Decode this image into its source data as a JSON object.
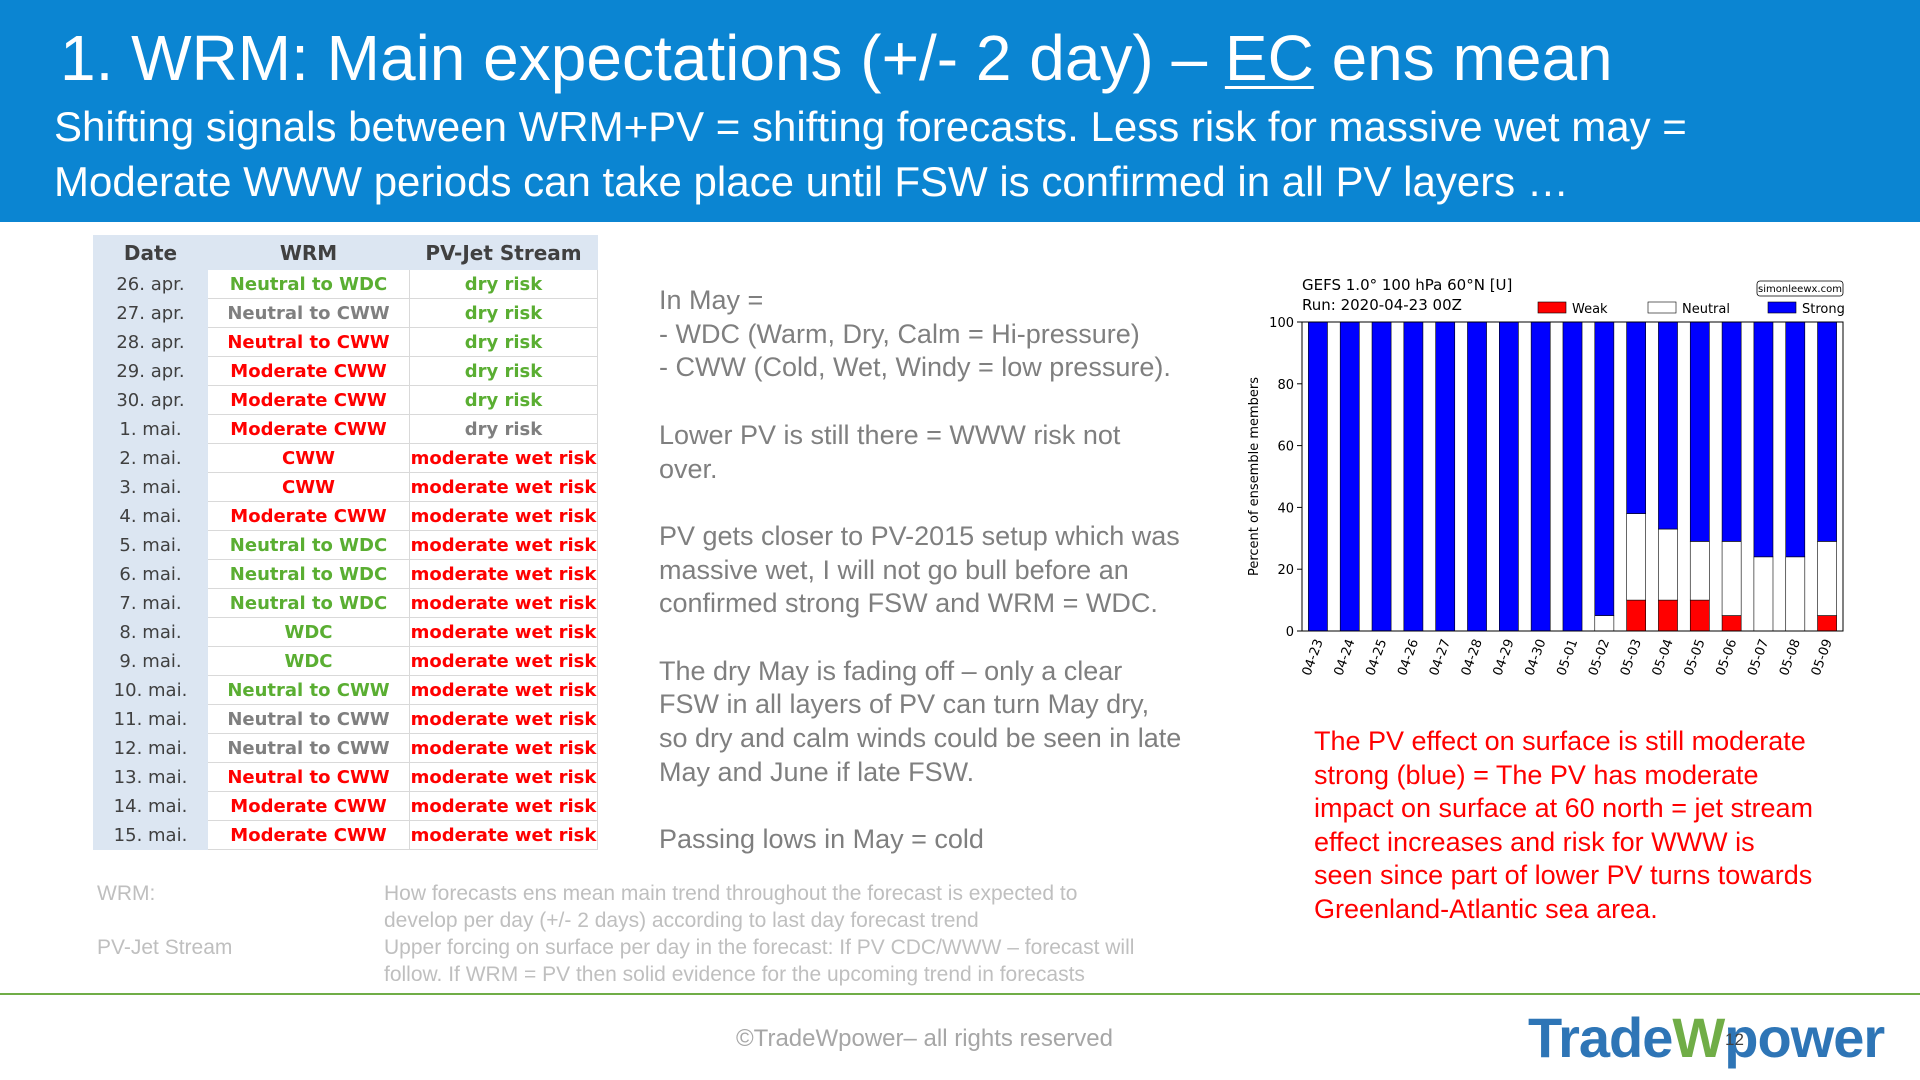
{
  "header": {
    "title": [
      "1. WRM: Main expectations (+/- 2 day) – ",
      "EC",
      " ens mean"
    ],
    "subtitle": [
      "Shifting signals between WRM+PV = shifting forecasts. Less risk for massive wet may =",
      "Moderate WWW periods can take place until FSW is confirmed in all PV layers …"
    ]
  },
  "table": {
    "columns": [
      "Date",
      "WRM",
      "PV-Jet Stream"
    ],
    "rows": [
      {
        "date": "26. apr.",
        "wrm": "Neutral to WDC",
        "wrm_color": "#5aae32",
        "pv": "dry risk",
        "pv_color": "#5aae32"
      },
      {
        "date": "27. apr.",
        "wrm": "Neutral to CWW",
        "wrm_color": "#7f7f7f",
        "pv": "dry risk",
        "pv_color": "#5aae32"
      },
      {
        "date": "28. apr.",
        "wrm": "Neutral to CWW",
        "wrm_color": "#ff0000",
        "pv": "dry risk",
        "pv_color": "#5aae32"
      },
      {
        "date": "29. apr.",
        "wrm": "Moderate CWW",
        "wrm_color": "#ff0000",
        "pv": "dry risk",
        "pv_color": "#5aae32"
      },
      {
        "date": "30. apr.",
        "wrm": "Moderate CWW",
        "wrm_color": "#ff0000",
        "pv": "dry risk",
        "pv_color": "#5aae32"
      },
      {
        "date": "1. mai.",
        "wrm": "Moderate CWW",
        "wrm_color": "#ff0000",
        "pv": "dry risk",
        "pv_color": "#7f7f7f"
      },
      {
        "date": "2. mai.",
        "wrm": "CWW",
        "wrm_color": "#ff0000",
        "pv": "moderate wet risk",
        "pv_color": "#ff0000"
      },
      {
        "date": "3. mai.",
        "wrm": "CWW",
        "wrm_color": "#ff0000",
        "pv": "moderate wet risk",
        "pv_color": "#ff0000"
      },
      {
        "date": "4. mai.",
        "wrm": "Moderate CWW",
        "wrm_color": "#ff0000",
        "pv": "moderate wet risk",
        "pv_color": "#ff0000"
      },
      {
        "date": "5. mai.",
        "wrm": "Neutral to WDC",
        "wrm_color": "#5aae32",
        "pv": "moderate wet risk",
        "pv_color": "#ff0000"
      },
      {
        "date": "6. mai.",
        "wrm": "Neutral to WDC",
        "wrm_color": "#5aae32",
        "pv": "moderate wet risk",
        "pv_color": "#ff0000"
      },
      {
        "date": "7. mai.",
        "wrm": "Neutral to WDC",
        "wrm_color": "#5aae32",
        "pv": "moderate wet risk",
        "pv_color": "#ff0000"
      },
      {
        "date": "8. mai.",
        "wrm": "WDC",
        "wrm_color": "#5aae32",
        "pv": "moderate wet risk",
        "pv_color": "#ff0000"
      },
      {
        "date": "9. mai.",
        "wrm": "WDC",
        "wrm_color": "#5aae32",
        "pv": "moderate wet risk",
        "pv_color": "#ff0000"
      },
      {
        "date": "10. mai.",
        "wrm": "Neutral to CWW",
        "wrm_color": "#5aae32",
        "pv": "moderate wet risk",
        "pv_color": "#ff0000"
      },
      {
        "date": "11. mai.",
        "wrm": "Neutral to CWW",
        "wrm_color": "#7f7f7f",
        "pv": "moderate wet risk",
        "pv_color": "#ff0000"
      },
      {
        "date": "12. mai.",
        "wrm": "Neutral to CWW",
        "wrm_color": "#7f7f7f",
        "pv": "moderate wet risk",
        "pv_color": "#ff0000"
      },
      {
        "date": "13. mai.",
        "wrm": "Neutral to CWW",
        "wrm_color": "#ff0000",
        "pv": "moderate wet risk",
        "pv_color": "#ff0000"
      },
      {
        "date": "14. mai.",
        "wrm": "Moderate CWW",
        "wrm_color": "#ff0000",
        "pv": "moderate wet risk",
        "pv_color": "#ff0000"
      },
      {
        "date": "15. mai.",
        "wrm": "Moderate CWW",
        "wrm_color": "#ff0000",
        "pv": "moderate wet risk",
        "pv_color": "#ff0000"
      }
    ]
  },
  "commentary": [
    [
      "In May =",
      "- WDC (Warm, Dry, Calm = Hi-pressure)",
      "- CWW (Cold, Wet, Windy = low pressure)."
    ],
    [
      "Lower PV is still there = WWW risk not",
      "over."
    ],
    [
      "PV gets closer to PV-2015 setup which was",
      "massive wet, I will not go bull before an",
      "confirmed strong FSW and WRM = WDC."
    ],
    [
      "The dry May is fading off – only a clear",
      "FSW in all layers of PV can turn May dry,",
      "so dry and calm winds could be seen in late",
      "May and June if late FSW."
    ],
    [
      "Passing lows in May = cold"
    ]
  ],
  "definitions": [
    {
      "term": "WRM:",
      "text": [
        "How forecasts ens mean main trend throughout the forecast is expected to",
        "develop per day (+/- 2 days) according to last day forecast trend"
      ]
    },
    {
      "term": "PV-Jet Stream",
      "text": [
        "Upper forcing on surface per day in the forecast: If PV CDC/WWW – forecast will",
        "follow. If WRM = PV then solid evidence for the upcoming trend in forecasts"
      ]
    }
  ],
  "chart_data": {
    "type": "bar",
    "stacked": true,
    "title": "GEFS 1.0° 100 hPa 60°N [U]",
    "subtitle": "Run: 2020-04-23 00Z",
    "source": "simonleewx.com",
    "ylabel": "Percent of ensemble members",
    "categories": [
      "04-23",
      "04-24",
      "04-25",
      "04-26",
      "04-27",
      "04-28",
      "04-29",
      "04-30",
      "05-01",
      "05-02",
      "05-03",
      "05-04",
      "05-05",
      "05-06",
      "05-07",
      "05-08",
      "05-09"
    ],
    "series": [
      {
        "name": "Weak",
        "color": "#ff0000",
        "values": [
          0,
          0,
          0,
          0,
          0,
          0,
          0,
          0,
          0,
          0,
          10,
          10,
          10,
          5,
          0,
          0,
          5
        ]
      },
      {
        "name": "Neutral",
        "color": "#ffffff",
        "values": [
          0,
          0,
          0,
          0,
          0,
          0,
          0,
          0,
          0,
          5,
          28,
          23,
          19,
          24,
          24,
          24,
          24
        ]
      },
      {
        "name": "Strong",
        "color": "#0000ff",
        "values": [
          100,
          100,
          100,
          100,
          100,
          100,
          100,
          100,
          100,
          95,
          62,
          67,
          71,
          71,
          76,
          76,
          71
        ]
      }
    ],
    "ylim": [
      0,
      100
    ],
    "yticks": [
      0,
      20,
      40,
      60,
      80,
      100
    ],
    "legend": "upper right"
  },
  "chart_note": [
    "The PV effect on surface is still moderate",
    "strong (blue) = The PV has moderate",
    "impact on surface at 60 north = jet stream",
    "effect increases and risk for WWW is",
    "seen since part of lower PV turns towards",
    "Greenland-Atlantic sea area."
  ],
  "footer": {
    "copyright": "©TradeWpower– all rights reserved",
    "page": "12",
    "logo": [
      "Trade",
      "W",
      "power"
    ]
  }
}
